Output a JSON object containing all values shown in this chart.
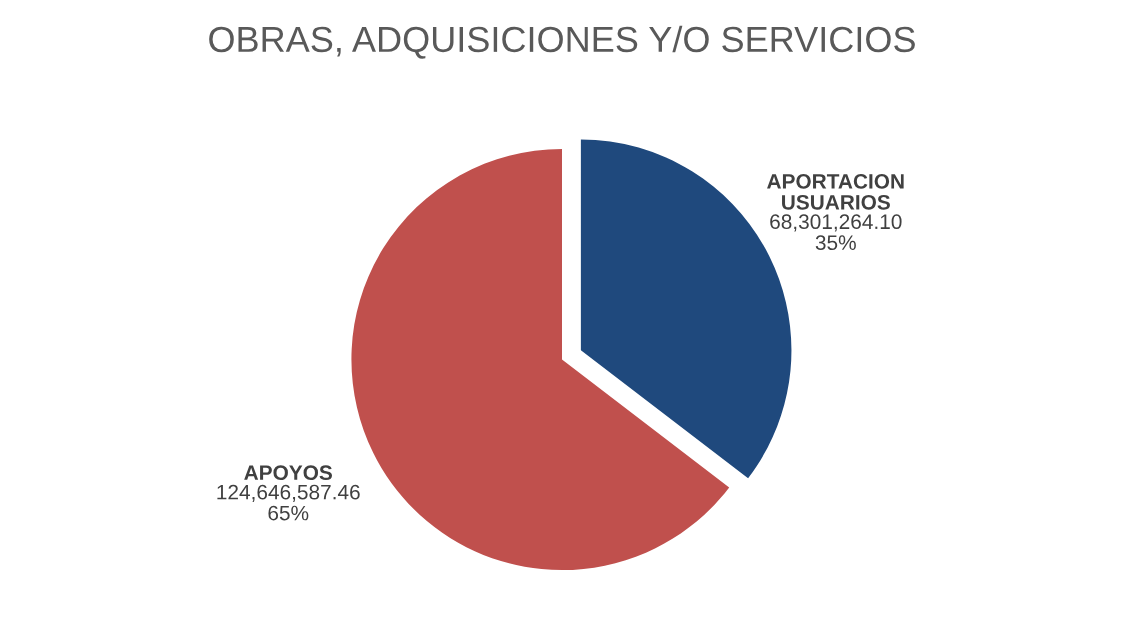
{
  "chart_data": {
    "type": "pie",
    "title": "OBRAS, ADQUISICIONES Y/O SERVICIOS",
    "categories": [
      "APORTACION\nUSUARIOS",
      "APOYOS"
    ],
    "values": [
      68301264.1,
      124646587.46
    ],
    "colors": [
      "#1f497d",
      "#c0504d"
    ],
    "value_labels": [
      "68,301,264.10\n35%",
      "124,646,587.46\n65%"
    ],
    "legend": false
  }
}
